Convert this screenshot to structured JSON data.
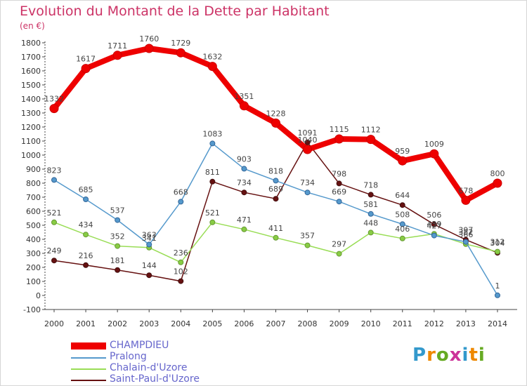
{
  "title": "Evolution du Montant de la Dette par Habitant",
  "subtitle": "(en €)",
  "logo_text": "Proxiti",
  "chart_data": {
    "type": "line",
    "title": "Evolution du Montant de la Dette par Habitant",
    "ylabel": "(en €)",
    "xlabel": "",
    "x": [
      2000,
      2001,
      2002,
      2003,
      2004,
      2005,
      2006,
      2007,
      2008,
      2009,
      2010,
      2011,
      2012,
      2013,
      2014
    ],
    "ylim": [
      -100,
      1800
    ],
    "yticks": [
      -100,
      0,
      100,
      200,
      300,
      400,
      500,
      600,
      700,
      800,
      900,
      1000,
      1100,
      1200,
      1300,
      1400,
      1500,
      1600,
      1700,
      1800
    ],
    "grid": false,
    "legend_position": "bottom-left",
    "series": [
      {
        "name": "CHAMPDIEU",
        "color": "#ee0000",
        "values": [
          1332,
          1617,
          1711,
          1760,
          1729,
          1632,
          1351,
          1228,
          1040,
          1115,
          1112,
          959,
          1009,
          678,
          800
        ]
      },
      {
        "name": "Pralong",
        "color": "#5599cc",
        "values": [
          823,
          685,
          537,
          363,
          668,
          1083,
          903,
          818,
          734,
          669,
          581,
          508,
          427,
          382,
          1
        ]
      },
      {
        "name": "Chalain-d'Uzore",
        "color": "#99dd55",
        "values": [
          521,
          434,
          352,
          341,
          236,
          521,
          471,
          411,
          357,
          297,
          448,
          406,
          439,
          366,
          312
        ]
      },
      {
        "name": "Saint-Paul-d'Uzore",
        "color": "#661111",
        "values": [
          249,
          216,
          181,
          144,
          102,
          811,
          734,
          689,
          1091,
          798,
          718,
          644,
          506,
          397,
          304
        ]
      }
    ]
  }
}
